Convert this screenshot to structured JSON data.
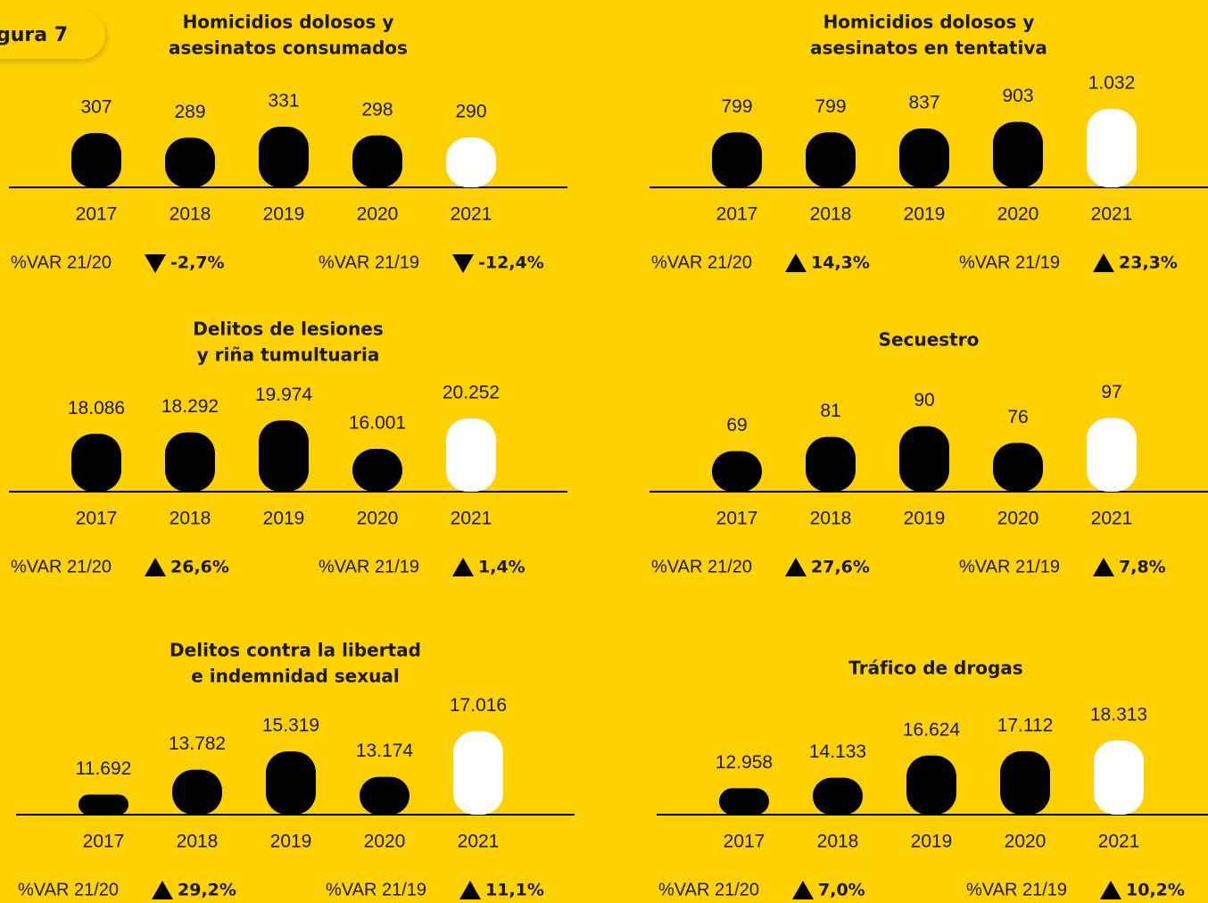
{
  "figure_label": "gura 7",
  "chart_data": [
    {
      "type": "bar",
      "title": [
        "Homicidios dolosos y",
        "asesinatos consumados"
      ],
      "categories": [
        "2017",
        "2018",
        "2019",
        "2020",
        "2021"
      ],
      "values": [
        307,
        289,
        331,
        298,
        290
      ],
      "value_labels": [
        "307",
        "289",
        "331",
        "298",
        "290"
      ],
      "colors": [
        "#000000",
        "#000000",
        "#000000",
        "#000000",
        "#ffffff"
      ],
      "ylim": [
        100,
        440
      ],
      "changes": [
        {
          "label": "%VAR 21/20",
          "value": -2.7,
          "value_label": "-2,7%"
        },
        {
          "label": "%VAR 21/19",
          "value": -12.4,
          "value_label": "-12,4%"
        }
      ]
    },
    {
      "type": "bar",
      "title": [
        "Homicidios dolosos y",
        "asesinatos en tentativa"
      ],
      "categories": [
        "2017",
        "2018",
        "2019",
        "2020",
        "2021"
      ],
      "values": [
        799,
        799,
        837,
        903,
        1032
      ],
      "value_labels": [
        "799",
        "799",
        "837",
        "903",
        "1.032"
      ],
      "colors": [
        "#000000",
        "#000000",
        "#000000",
        "#000000",
        "#ffffff"
      ],
      "ylim": [
        250,
        1140
      ],
      "changes": [
        {
          "label": "%VAR 21/20",
          "value": 14.3,
          "value_label": "14,3%"
        },
        {
          "label": "%VAR 21/19",
          "value": 23.3,
          "value_label": "23,3%"
        }
      ]
    },
    {
      "type": "bar",
      "title": [
        "Delitos de lesiones",
        "y riña tumultuaria"
      ],
      "categories": [
        "2017",
        "2018",
        "2019",
        "2020",
        "2021"
      ],
      "values": [
        18086,
        18292,
        19974,
        16001,
        20252
      ],
      "value_labels": [
        "18.086",
        "18.292",
        "19.974",
        "16.001",
        "20.252"
      ],
      "colors": [
        "#000000",
        "#000000",
        "#000000",
        "#000000",
        "#ffffff"
      ],
      "ylim": [
        10000,
        22500
      ],
      "changes": [
        {
          "label": "%VAR 21/20",
          "value": 26.6,
          "value_label": "26,6%"
        },
        {
          "label": "%VAR 21/19",
          "value": 1.4,
          "value_label": "1,4%"
        }
      ]
    },
    {
      "type": "bar",
      "title": [
        "Secuestro"
      ],
      "categories": [
        "2017",
        "2018",
        "2019",
        "2020",
        "2021"
      ],
      "values": [
        69,
        81,
        90,
        76,
        97
      ],
      "value_labels": [
        "69",
        "81",
        "90",
        "76",
        "97"
      ],
      "colors": [
        "#000000",
        "#000000",
        "#000000",
        "#000000",
        "#ffffff"
      ],
      "ylim": [
        35,
        110
      ],
      "changes": [
        {
          "label": "%VAR 21/20",
          "value": 27.6,
          "value_label": "27,6%"
        },
        {
          "label": "%VAR 21/19",
          "value": 7.8,
          "value_label": "7,8%"
        }
      ]
    },
    {
      "type": "bar",
      "title": [
        "Delitos contra la libertad",
        "e indemnidad sexual"
      ],
      "categories": [
        "2017",
        "2018",
        "2019",
        "2020",
        "2021"
      ],
      "values": [
        11692,
        13782,
        15319,
        13174,
        17016
      ],
      "value_labels": [
        "11.692",
        "13.782",
        "15.319",
        "13.174",
        "17.016"
      ],
      "colors": [
        "#000000",
        "#000000",
        "#000000",
        "#000000",
        "#ffffff"
      ],
      "ylim": [
        10000,
        17500
      ],
      "changes": [
        {
          "label": "%VAR 21/20",
          "value": 29.2,
          "value_label": "29,2%"
        },
        {
          "label": "%VAR 21/19",
          "value": 11.1,
          "value_label": "11,1%"
        }
      ]
    },
    {
      "type": "bar",
      "title": [
        "Tráfico de drogas"
      ],
      "categories": [
        "2017",
        "2018",
        "2019",
        "2020",
        "2021"
      ],
      "values": [
        12958,
        14133,
        16624,
        17112,
        18313
      ],
      "value_labels": [
        "12.958",
        "14.133",
        "16.624",
        "17.112",
        "18.313"
      ],
      "colors": [
        "#000000",
        "#000000",
        "#000000",
        "#000000",
        "#ffffff"
      ],
      "ylim": [
        10000,
        20000
      ],
      "changes": [
        {
          "label": "%VAR 21/20",
          "value": 7.0,
          "value_label": "7,0%"
        },
        {
          "label": "%VAR 21/19",
          "value": 10.2,
          "value_label": "10,2%"
        }
      ]
    }
  ]
}
